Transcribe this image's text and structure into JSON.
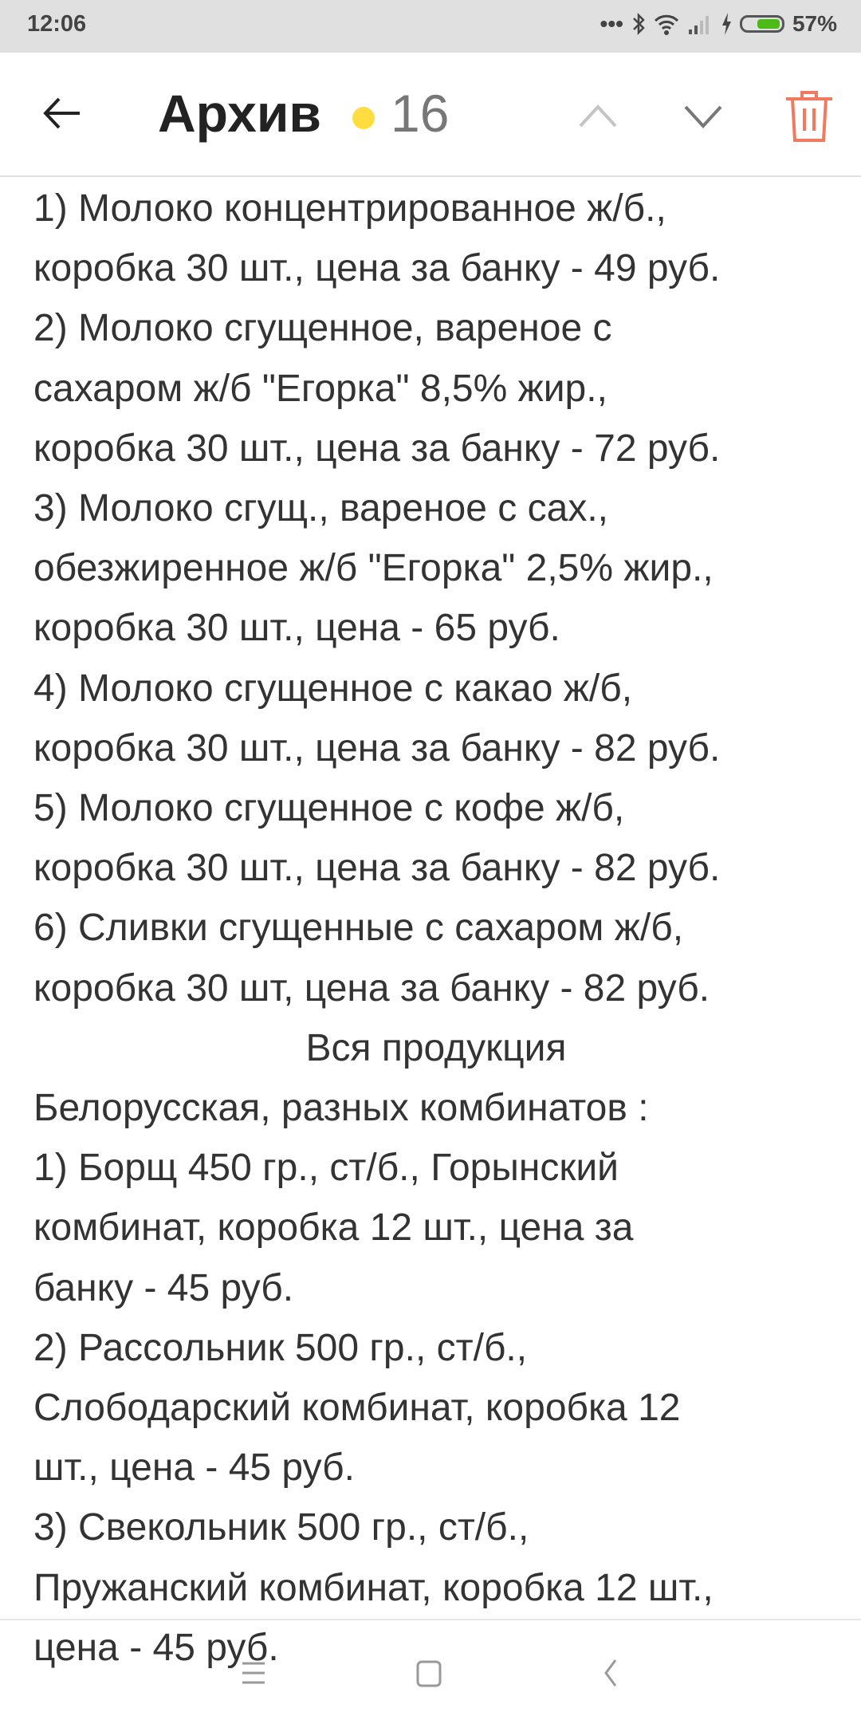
{
  "status_bar": {
    "time": "12:06",
    "battery": "57%",
    "battery_level": 0.57,
    "icons": [
      "more-dots-icon",
      "bluetooth-icon",
      "wifi-icon",
      "signal-icon",
      "charging-icon",
      "battery-icon"
    ]
  },
  "header": {
    "title": "Архив",
    "unread_dot_color": "#ffdd40",
    "count": "16",
    "delete_color": "#f07a60"
  },
  "message_lines": [
    "1) Молоко концентрированное ж/б.,",
    "коробка 30 шт., цена за банку - 49 руб.",
    "2) Молоко сгущенное, вареное с",
    "сахаром ж/б \"Егорка\" 8,5% жир.,",
    "коробка 30 шт., цена за банку - 72 руб.",
    "3) Молоко сгущ., вареное с сах.,",
    "обезжиренное ж/б \"Егорка\" 2,5% жир.,",
    "коробка 30 шт., цена - 65 руб.",
    "4) Молоко сгущенное с какао ж/б,",
    "коробка 30 шт., цена за банку - 82 руб.",
    "5) Молоко сгущенное с кофе ж/б,",
    "коробка 30 шт., цена за банку - 82 руб.",
    "6) Сливки сгущенные с сахаром ж/б,",
    "коробка 30 шт, цена за банку - 82 руб.",
    "Вся продукция",
    "Белорусская, разных комбинатов :",
    "1) Борщ 450 гр., ст/б., Горынский",
    "комбинат, коробка 12 шт., цена за",
    "банку - 45 руб.",
    "2) Рассольник 500 гр., ст/б.,",
    "Слободарский комбинат, коробка 12",
    "шт., цена - 45 руб.",
    "3) Свекольник 500 гр., ст/б.,",
    "Пружанский комбинат, коробка 12 шт.,",
    "цена - 45 руб."
  ]
}
